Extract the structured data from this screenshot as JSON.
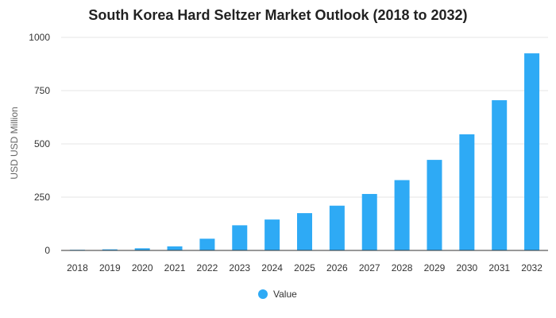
{
  "chart_data": {
    "type": "bar",
    "title": "South Korea Hard Seltzer Market Outlook (2018 to 2032)",
    "xlabel": "",
    "ylabel": "USD USD Million",
    "categories": [
      "2018",
      "2019",
      "2020",
      "2021",
      "2022",
      "2023",
      "2024",
      "2025",
      "2026",
      "2027",
      "2028",
      "2029",
      "2030",
      "2031",
      "2032"
    ],
    "series": [
      {
        "name": "Value",
        "values": [
          2,
          5,
          10,
          19,
          55,
          118,
          145,
          175,
          210,
          265,
          330,
          425,
          545,
          705,
          925
        ]
      }
    ],
    "ylim": [
      0,
      1000
    ],
    "yticks": [
      "0",
      "250",
      "500",
      "750",
      "1000"
    ],
    "grid": true,
    "legend": "bottom-center",
    "colors": {
      "bar": "#2eaaf5",
      "grid": "#e6e6e6",
      "axis": "#333333"
    }
  }
}
